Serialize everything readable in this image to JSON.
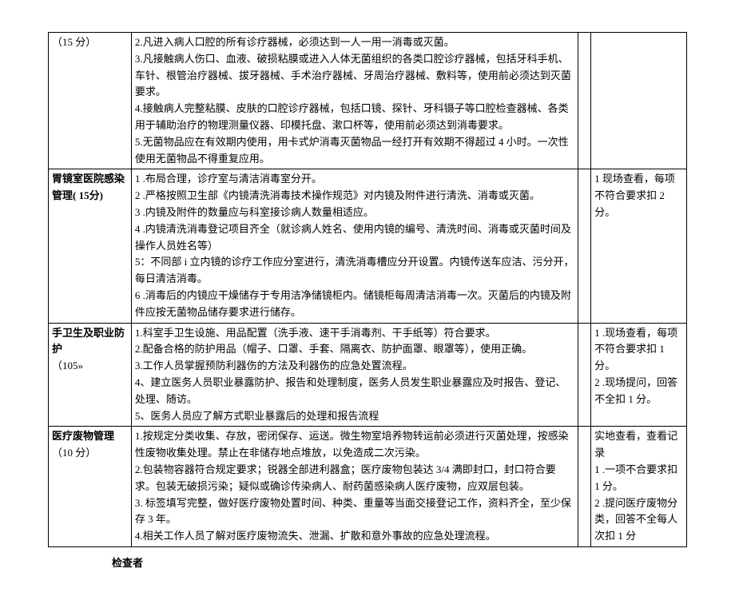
{
  "rows": [
    {
      "col1": "（15 分）",
      "col2": "2.凡进入病人口腔的所有诊疗器械，必须达到一人一用一消毒或灭菌。\n3.凡接触病人伤口、血液、破损粘膜或进入人体无菌组织的各类口腔诊疗器械，包括牙科手机、车针、根管治疗器械、拔牙器械、手术治疗器械、牙周治疗器械、敷料等，使用前必须达到灭菌要求。\n4.接触病人完整粘膜、皮肤的口腔诊疗器械，包括口镜、探针、牙科镊子等口腔检查器械、各类用于辅助治疗的物理测量仪器、印模托盘、漱口杯等，使用前必须达到消毒要求。\n5.无菌物品应在有效期内使用，用卡式炉消毒灭菌物品一经打开有效期不得超过 4 小时。一次性使用无菌物品不得重复应用。",
      "col3": "",
      "col4": ""
    },
    {
      "col1_html": "<span class=\"bold\">胃镜室医院感染管理( 15分)</span>",
      "col2": "1        .布局合理，诊疗室与清洁消毒室分开。\n2        .严格按照卫生部《内镜清洗消毒技术操作规范》对内镜及附件进行清洗、消毒或灭菌。\n3        .内镜及附件的数量应与科室接诊病人数量相适应。\n4        .内镜清洗消毒登记项目齐全（就诊病人姓名、使用内镜的编号、清洗时间、消毒或灭菌时间及操作人员姓名等）\n5：不同部 i 立内镜的诊疗工作应分室进行，清洗消毒槽应分开设置。内镜传送车应洁、污分开，每日清洁消毒。\n6        .消毒后的内镜应干燥储存于专用洁净储镜柜内。储镜柜每周清洁消毒一次。灭菌后的内镜及附件应按无菌物品储存要求进行储存。",
      "col3": "",
      "col4": "1 现场查看，每项不符合要求扣 2 分。"
    },
    {
      "col1_html": "<span class=\"bold\">手卫生及职业防护</span><br>（105»",
      "col2": "1.科室手卫生设施、用品配置（洗手液、速干手消毒剂、干手纸等）符合要求。\n2.配备合格的防护用品（帽子、口罩、手套、隔离衣、防护面罩、眼罩等），使用正确。\n3.工作人员掌握预防利器伤的方法及利器伤的应急处置流程。\n4、建立医务人员职业暴露防护、报告和处理制度，医务人员发生职业暴露应及时报告、登记、处理、随访。\n5、医务人员应了解方式职业暴露后的处理和报告流程",
      "col3": "",
      "col4": "1        .现场查看，每项不符合要求扣 1 分。\n2        .现场提问，回答不全扣 1 分。"
    },
    {
      "col1_html": "<span class=\"bold\">医疗废物管理</span><br>（10 分）",
      "col2": "1.按规定分类收集、存放，密闭保存、运送。微生物室培养物转运前必须进行灭菌处理，按感染性废物收集处理。禁止在非储存地点堆放，以免造成二次污染。\n2.包装物容器符合规定要求；锐器全部进利器盒；医疗废物包装达 3/4 满即封口，封口符合要求。包装无破损污染；疑似或确诊传染病人、耐药菌感染病人医疗废物，应双层包装。\n3. 标签填写完整，做好医疗废物处置时间、种类、重量等当面交接登记工作，资料齐全，至少保存 3 年。\n4.相关工作人员了解对医疗废物流失、泄漏、扩散和意外事故的应急处理流程。",
      "col3": "",
      "col4": "实地查看，查看记录\n1        .一项不合要求扣 1 分。\n2        .提问医疗废物分类，回答不全每人次扣 1 分"
    }
  ],
  "footer": "检查者"
}
